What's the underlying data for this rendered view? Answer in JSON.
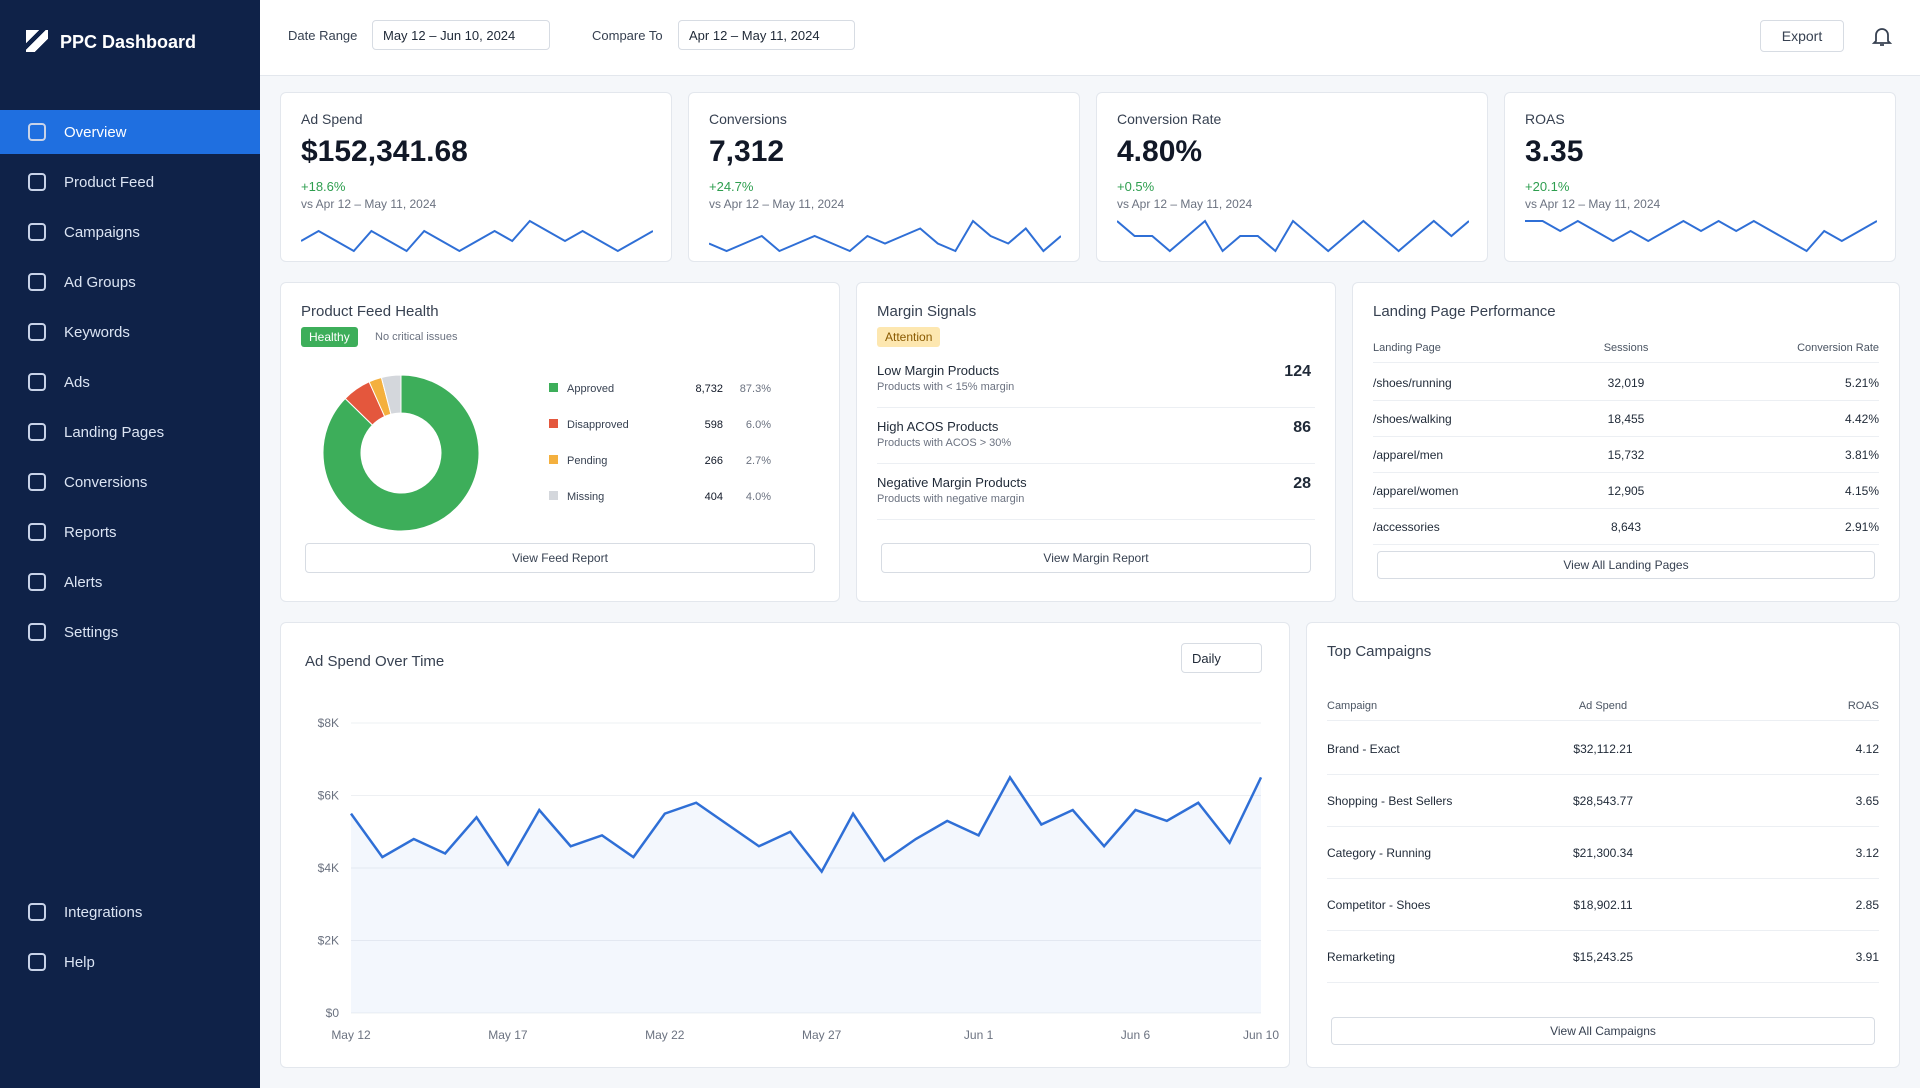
{
  "brand": "PPC Dashboard",
  "nav": [
    "Overview",
    "Product Feed",
    "Campaigns",
    "Ad Groups",
    "Keywords",
    "Ads",
    "Landing Pages",
    "Conversions",
    "Reports",
    "Alerts",
    "Settings"
  ],
  "nav_bottom": [
    "Integrations",
    "Help"
  ],
  "header": {
    "date_range_label": "Date Range",
    "date_range": "May 12 – Jun 10, 2024",
    "compare_label": "Compare To",
    "compare": "Apr 12 – May 11, 2024",
    "export": "Export"
  },
  "kpis": [
    {
      "label": "Ad Spend",
      "value": "$152,341.68",
      "change": "+18.6%",
      "compare": "vs Apr 12 – May 11, 2024",
      "trend": [
        5,
        6,
        5,
        4,
        6,
        5,
        4,
        6,
        5,
        4,
        5,
        6,
        5,
        7,
        6,
        5,
        6,
        5,
        4,
        5,
        6
      ]
    },
    {
      "label": "Conversions",
      "value": "7,312",
      "change": "+24.7%",
      "compare": "vs Apr 12 – May 11, 2024",
      "trend": [
        5,
        4,
        5,
        6,
        4,
        5,
        6,
        5,
        4,
        6,
        5,
        6,
        7,
        5,
        4,
        8,
        6,
        5,
        7,
        4,
        6
      ]
    },
    {
      "label": "Conversion Rate",
      "value": "4.80%",
      "change": "+0.5%",
      "compare": "vs Apr 12 – May 11, 2024",
      "trend": [
        6,
        5,
        5,
        4,
        5,
        6,
        4,
        5,
        5,
        4,
        6,
        5,
        4,
        5,
        6,
        5,
        4,
        5,
        6,
        5,
        6
      ]
    },
    {
      "label": "ROAS",
      "value": "3.35",
      "change": "+20.1%",
      "compare": "vs Apr 12 – May 11, 2024",
      "trend": [
        6,
        6,
        5,
        6,
        5,
        4,
        5,
        4,
        5,
        6,
        5,
        6,
        5,
        6,
        5,
        4,
        3,
        5,
        4,
        5,
        6
      ]
    }
  ],
  "feed_health": {
    "title": "Product Feed Health",
    "badge": "Healthy",
    "note": "No critical issues",
    "button": "View Feed Report",
    "chart": {
      "type": "pie",
      "categories": [
        "Approved",
        "Disapproved",
        "Pending",
        "Missing"
      ],
      "values": [
        8732,
        598,
        266,
        404
      ],
      "value_labels": [
        "8,732",
        "598",
        "266",
        "404"
      ],
      "percents": [
        87.3,
        6.0,
        2.7,
        4.0
      ],
      "percent_labels": [
        "87.3%",
        "6.0%",
        "2.7%",
        "4.0%"
      ],
      "colors": [
        "#3dae5a",
        "#e4573d",
        "#f4b03e",
        "#d4d7dc"
      ]
    }
  },
  "margin": {
    "title": "Margin Signals",
    "badge": "Attention",
    "button": "View Margin Report",
    "items": [
      {
        "title": "Low Margin Products",
        "subtitle": "Products with < 15% margin",
        "count": "124"
      },
      {
        "title": "High ACOS Products",
        "subtitle": "Products with ACOS > 30%",
        "count": "86"
      },
      {
        "title": "Negative Margin Products",
        "subtitle": "Products with negative margin",
        "count": "28"
      }
    ]
  },
  "landing": {
    "title": "Landing Page Performance",
    "columns": [
      "Landing Page",
      "Sessions",
      "Conversion Rate"
    ],
    "button": "View All Landing Pages",
    "rows": [
      [
        "/shoes/running",
        "32,019",
        "5.21%"
      ],
      [
        "/shoes/walking",
        "18,455",
        "4.42%"
      ],
      [
        "/apparel/men",
        "15,732",
        "3.81%"
      ],
      [
        "/apparel/women",
        "12,905",
        "4.15%"
      ],
      [
        "/accessories",
        "8,643",
        "2.91%"
      ]
    ]
  },
  "ad_spend": {
    "title": "Ad Spend Over Time",
    "period": "Daily",
    "chart": {
      "type": "line",
      "color": "#2f6fd6",
      "categories": [
        "May 12",
        null,
        null,
        null,
        null,
        "May 17",
        null,
        null,
        null,
        null,
        "May 22",
        null,
        null,
        null,
        null,
        "May 27",
        null,
        null,
        null,
        null,
        "Jun 1",
        null,
        null,
        null,
        null,
        "Jun 6",
        null,
        null,
        null,
        "Jun 10"
      ],
      "values": [
        5500,
        4300,
        4800,
        4400,
        5400,
        4100,
        5600,
        4600,
        4900,
        4300,
        5500,
        5800,
        5200,
        4600,
        5000,
        3900,
        5500,
        4200,
        4800,
        5300,
        4900,
        6500,
        5200,
        5600,
        4600,
        5600,
        5300,
        5800,
        4700,
        6500
      ],
      "ylim": [
        0,
        8000
      ],
      "yticks": [
        {
          "value": 0,
          "label": "$0"
        },
        {
          "value": 2000,
          "label": "$2K"
        },
        {
          "value": 4000,
          "label": "$4K"
        },
        {
          "value": 6000,
          "label": "$6K"
        },
        {
          "value": 8000,
          "label": "$8K"
        }
      ],
      "grid": true
    }
  },
  "campaigns": {
    "title": "Top Campaigns",
    "columns": [
      "Campaign",
      "Ad Spend",
      "ROAS"
    ],
    "button": "View All Campaigns",
    "rows": [
      [
        "Brand - Exact",
        "$32,112.21",
        "4.12"
      ],
      [
        "Shopping - Best Sellers",
        "$28,543.77",
        "3.65"
      ],
      [
        "Category - Running",
        "$21,300.34",
        "3.12"
      ],
      [
        "Competitor - Shoes",
        "$18,902.11",
        "2.85"
      ],
      [
        "Remarketing",
        "$15,243.25",
        "3.91"
      ]
    ]
  }
}
